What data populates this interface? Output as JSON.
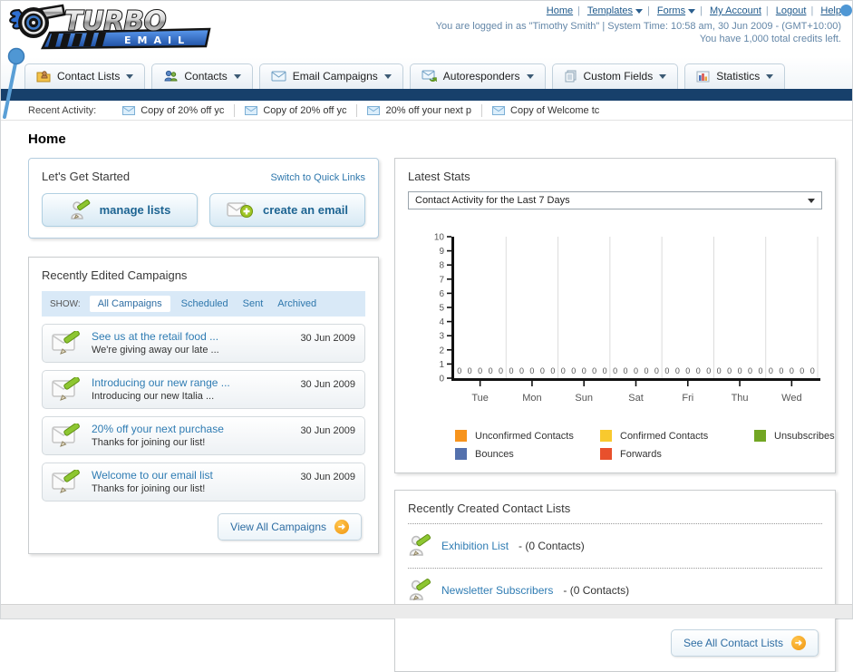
{
  "header": {
    "logo": {
      "title": "TURBO",
      "subtitle": "EMAIL"
    },
    "links": [
      {
        "label": "Home",
        "dropdown": false
      },
      {
        "label": "Templates",
        "dropdown": true
      },
      {
        "label": "Forms",
        "dropdown": true
      },
      {
        "label": "My Account",
        "dropdown": false
      },
      {
        "label": "Logout",
        "dropdown": false
      },
      {
        "label": "Help",
        "dropdown": false
      }
    ],
    "login_text": "You are logged in as \"Timothy Smith\" | System Time: 10:58 am, 30 Jun 2009 - (GMT+10:00)",
    "credits_text": "You have 1,000 total credits left."
  },
  "nav": {
    "tabs": [
      {
        "label": "Contact Lists"
      },
      {
        "label": "Contacts"
      },
      {
        "label": "Email Campaigns"
      },
      {
        "label": "Autoresponders"
      },
      {
        "label": "Custom Fields"
      },
      {
        "label": "Statistics"
      }
    ]
  },
  "recent_activity": {
    "label": "Recent Activity:",
    "items": [
      {
        "text": "Copy of 20% off yc"
      },
      {
        "text": "Copy of 20% off yc"
      },
      {
        "text": "20% off your next p"
      },
      {
        "text": "Copy of Welcome tc"
      }
    ]
  },
  "page_title": "Home",
  "get_started": {
    "title": "Let's Get Started",
    "switch_link": "Switch to Quick Links",
    "manage_lists_label": "manage lists",
    "create_email_label": "create an email"
  },
  "campaigns": {
    "title": "Recently Edited Campaigns",
    "show_label": "SHOW:",
    "tabs": [
      {
        "label": "All Campaigns",
        "active": true
      },
      {
        "label": "Scheduled",
        "active": false
      },
      {
        "label": "Sent",
        "active": false
      },
      {
        "label": "Archived",
        "active": false
      }
    ],
    "items": [
      {
        "title": "See us at the retail food ...",
        "subtitle": "We're giving away our late ...",
        "date": "30 Jun 2009"
      },
      {
        "title": "Introducing our new range ...",
        "subtitle": "Introducing our new Italia ...",
        "date": "30 Jun 2009"
      },
      {
        "title": "20% off your next purchase",
        "subtitle": "Thanks for joining our list!",
        "date": "30 Jun 2009"
      },
      {
        "title": "Welcome to our email list",
        "subtitle": "Thanks for joining our list!",
        "date": "30 Jun 2009"
      }
    ],
    "view_all_label": "View All Campaigns"
  },
  "stats": {
    "title": "Latest Stats",
    "dropdown_value": "Contact Activity for the Last 7 Days",
    "chart_data": {
      "type": "bar",
      "title": "Contact Activity for the Last 7 Days",
      "categories": [
        "Tue",
        "Mon",
        "Sun",
        "Sat",
        "Fri",
        "Thu",
        "Wed"
      ],
      "series": [
        {
          "name": "Unconfirmed Contacts",
          "color": "#f7941d",
          "values": [
            0,
            0,
            0,
            0,
            0,
            0,
            0
          ]
        },
        {
          "name": "Confirmed Contacts",
          "color": "#f8c92e",
          "values": [
            0,
            0,
            0,
            0,
            0,
            0,
            0
          ]
        },
        {
          "name": "Unsubscribes",
          "color": "#72a623",
          "values": [
            0,
            0,
            0,
            0,
            0,
            0,
            0
          ]
        },
        {
          "name": "Bounces",
          "color": "#5471ad",
          "values": [
            0,
            0,
            0,
            0,
            0,
            0,
            0
          ]
        },
        {
          "name": "Forwards",
          "color": "#e8502c",
          "values": [
            0,
            0,
            0,
            0,
            0,
            0,
            0
          ]
        }
      ],
      "xlabel": "",
      "ylabel": "",
      "ylim": [
        0,
        10
      ],
      "ytick_step": 1,
      "grid": "vertical",
      "value_labels_shown": true,
      "legend_position": "bottom"
    }
  },
  "contact_lists": {
    "title": "Recently Created Contact Lists",
    "items": [
      {
        "name": "Exhibition List",
        "count": "- (0 Contacts)"
      },
      {
        "name": "Newsletter Subscribers",
        "count": "- (0 Contacts)"
      }
    ],
    "see_all_label": "See All Contact Lists"
  }
}
